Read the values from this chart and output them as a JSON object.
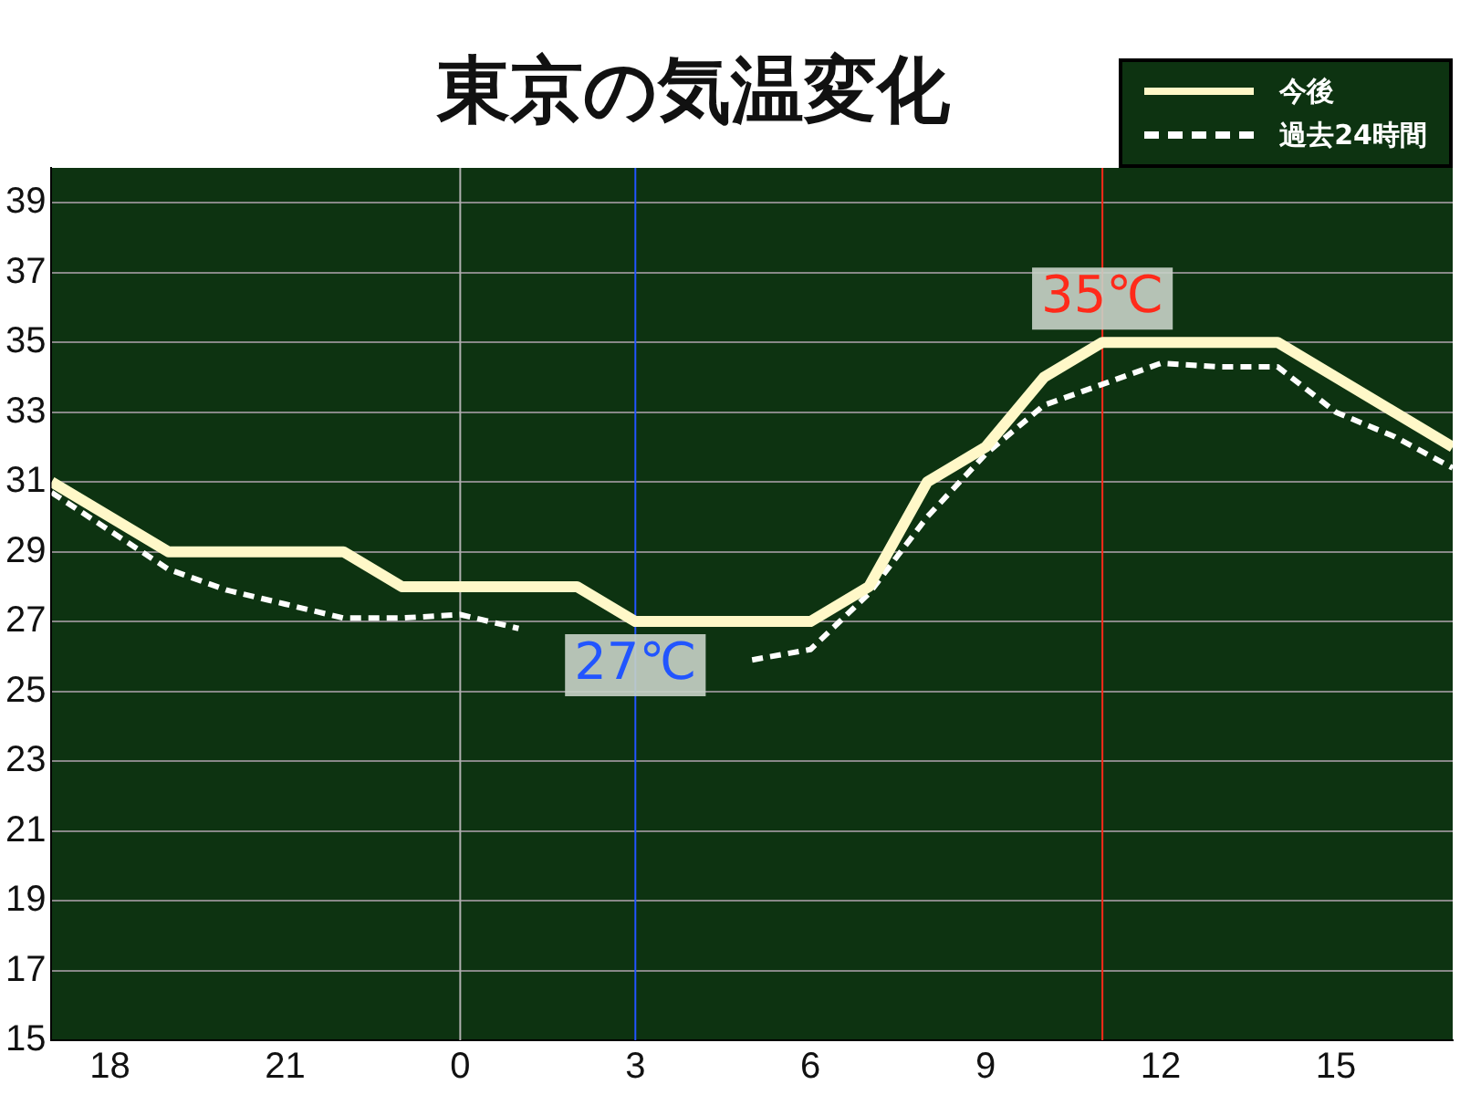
{
  "chart_data": {
    "type": "line",
    "title": "東京の気温変化",
    "xlim": [
      "--07-01T17:00",
      "--07-02T17:00"
    ],
    "xticks": [
      {
        "value": "--07-01T18:00",
        "label": "18"
      },
      {
        "value": "--07-01T21:00",
        "label": "21"
      },
      {
        "value": "--07-02T00:00",
        "label": "0"
      },
      {
        "value": "--07-02T03:00",
        "label": "3"
      },
      {
        "value": "--07-02T06:00",
        "label": "6"
      },
      {
        "value": "--07-02T09:00",
        "label": "9"
      },
      {
        "value": "--07-02T12:00",
        "label": "12"
      },
      {
        "value": "--07-02T15:00",
        "label": "15"
      }
    ],
    "ylim": [
      15,
      40
    ],
    "yticks": [
      15,
      17,
      19,
      21,
      23,
      25,
      27,
      29,
      31,
      33,
      35,
      37,
      39
    ],
    "grid": "y",
    "legend": "top right",
    "marker": "none",
    "series": [
      {
        "name": "今後",
        "color": "#fff8c8",
        "line_style": "solid",
        "x": [
          "--07-01T17:00",
          "--07-01T19:00",
          "--07-01T22:00",
          "--07-01T23:00",
          "--07-02T02:00",
          "--07-02T03:00",
          "--07-02T06:00",
          "--07-02T07:00",
          "--07-02T08:00",
          "--07-02T09:00",
          "--07-02T10:00",
          "--07-02T11:00",
          "--07-02T14:00",
          "--07-02T17:00"
        ],
        "values": [
          31,
          29,
          29,
          28,
          28,
          27,
          27,
          28,
          31,
          32,
          34,
          35,
          35,
          32
        ]
      },
      {
        "name": "過去24時間",
        "color": "#ffffff",
        "line_style": "dashed",
        "x": [
          "--07-01T17:00",
          "--07-01T18:00",
          "--07-01T19:00",
          "--07-01T20:00",
          "--07-01T21:00",
          "--07-01T22:00",
          "--07-01T23:00",
          "--07-02T00:00",
          "--07-02T01:00",
          "--07-02T02:00",
          "--07-02T03:00",
          "--07-02T04:00",
          "--07-02T05:00",
          "--07-02T06:00",
          "--07-02T07:00",
          "--07-02T08:00",
          "--07-02T09:00",
          "--07-02T10:00",
          "--07-02T11:00",
          "--07-02T12:00",
          "--07-02T13:00",
          "--07-02T14:00",
          "--07-02T15:00",
          "--07-02T16:00",
          "--07-02T17:00"
        ],
        "values": [
          30.7,
          29.6,
          28.5,
          27.9,
          27.5,
          27.1,
          27.1,
          27.2,
          26.8,
          null,
          null,
          null,
          25.9,
          26.2,
          27.8,
          30,
          31.8,
          33.2,
          33.8,
          34.4,
          34.3,
          34.3,
          33,
          32.3,
          31.4
        ]
      }
    ],
    "ref_lines": [
      {
        "axis": "x",
        "value": "--07-02T00:00",
        "color": "#b0b0b0"
      },
      {
        "axis": "x",
        "value": "--07-02T03:00",
        "color": "#2255ff"
      },
      {
        "axis": "x",
        "value": "--07-02T11:00",
        "color": "#ff2a1a"
      }
    ],
    "annotations": [
      {
        "text": "27℃",
        "x": "--07-02T03:00",
        "y": 27
      },
      {
        "text": "35℃",
        "x": "--07-02T11:00",
        "y": 35
      }
    ]
  }
}
